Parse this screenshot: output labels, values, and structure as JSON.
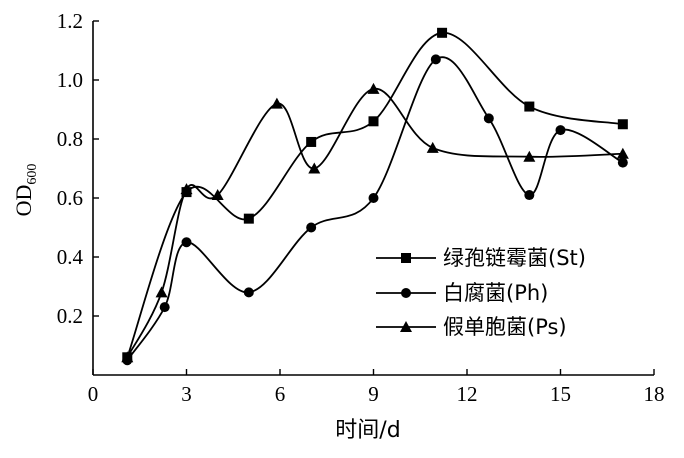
{
  "chart_data": {
    "type": "line",
    "xlabel": "时间/d",
    "ylabel_main": "OD",
    "ylabel_sub": "600",
    "xlim": [
      0,
      18
    ],
    "ylim": [
      0,
      1.2
    ],
    "xticks": [
      0,
      3,
      6,
      9,
      12,
      15,
      18
    ],
    "yticks": [
      0.2,
      0.4,
      0.6,
      0.8,
      1.0,
      1.2
    ],
    "ytick_labels": [
      "0.2",
      "0.4",
      "0.6",
      "0.8",
      "1.0",
      "1.2"
    ],
    "xtick_labels": [
      "0",
      "3",
      "6",
      "9",
      "12",
      "15",
      "18"
    ],
    "grid": false,
    "legend_position": "lower-right",
    "series": [
      {
        "name": "绿孢链霉菌(St)",
        "marker": "square",
        "x": [
          1.1,
          3.0,
          5.0,
          7.0,
          9.0,
          11.2,
          14.0,
          17.0
        ],
        "y": [
          0.06,
          0.62,
          0.53,
          0.79,
          0.86,
          1.16,
          0.91,
          0.85
        ]
      },
      {
        "name": "白腐菌(Ph)",
        "marker": "circle",
        "x": [
          1.1,
          2.3,
          3.0,
          5.0,
          7.0,
          9.0,
          11.0,
          12.7,
          14.0,
          15.0,
          17.0
        ],
        "y": [
          0.05,
          0.23,
          0.45,
          0.28,
          0.5,
          0.6,
          1.07,
          0.87,
          0.61,
          0.83,
          0.72
        ]
      },
      {
        "name": "假单胞菌(Ps)",
        "marker": "triangle",
        "x": [
          1.1,
          2.2,
          3.0,
          4.0,
          5.9,
          7.1,
          9.0,
          10.9,
          14.0,
          17.0
        ],
        "y": [
          0.06,
          0.28,
          0.63,
          0.61,
          0.92,
          0.7,
          0.97,
          0.77,
          0.74,
          0.75
        ]
      }
    ]
  }
}
